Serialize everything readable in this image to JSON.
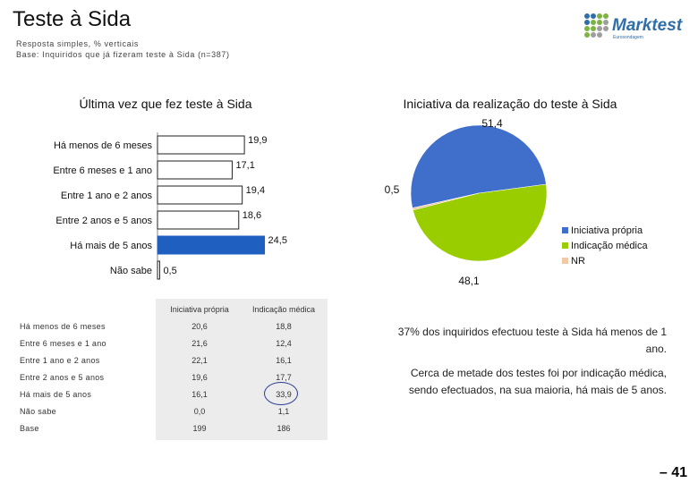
{
  "header": {
    "title": "Teste à Sida",
    "response_type": "Resposta simples, % verticais",
    "base": "Base: Inquiridos que já fizeram teste à Sida (n=387)",
    "logo_text": "Marktest",
    "logo_subtext": "Eurosondagem"
  },
  "colors": {
    "bar_default": "#ffffff",
    "bar_highlight": "#1f5fbf",
    "pie_propria": "#3f6fcb",
    "pie_medica": "#9acd00",
    "pie_nr": "#f0c9a6",
    "logo_dots": [
      "#2f6ea8",
      "#7cb342",
      "#9e9e9e"
    ],
    "circle_mark": "#2b3a8f"
  },
  "chart_data": [
    {
      "type": "bar",
      "orientation": "horizontal",
      "title": "Última vez que fez teste à Sida",
      "categories": [
        "Há menos de 6 meses",
        "Entre 6 meses e 1 ano",
        "Entre 1 ano e 2 anos",
        "Entre 2 anos e 5 anos",
        "Há mais de 5 anos",
        "Não sabe"
      ],
      "values": [
        19.9,
        17.1,
        19.4,
        18.6,
        24.5,
        0.5
      ],
      "value_labels": [
        "19,9",
        "17,1",
        "19,4",
        "18,6",
        "24,5",
        "0,5"
      ],
      "highlight_index": 4,
      "xlim": [
        0,
        30
      ],
      "grid": false
    },
    {
      "type": "pie",
      "title": "Iniciativa da realização do teste à Sida",
      "labels": [
        "Iniciativa própria",
        "Indicação médica",
        "NR"
      ],
      "values": [
        51.4,
        48.1,
        0.5
      ],
      "value_labels": [
        "51,4",
        "48,1",
        "0,5"
      ],
      "legend_position": "right"
    }
  ],
  "table": {
    "col_headers": [
      "Iniciativa própria",
      "Indicação médica"
    ],
    "rows": [
      {
        "label": "Há menos de 6 meses",
        "propria": "20,6",
        "medica": "18,8"
      },
      {
        "label": "Entre 6 meses e 1 ano",
        "propria": "21,6",
        "medica": "12,4"
      },
      {
        "label": "Entre 1 ano e 2 anos",
        "propria": "22,1",
        "medica": "16,1"
      },
      {
        "label": "Entre 2 anos e 5 anos",
        "propria": "19,6",
        "medica": "17,7"
      },
      {
        "label": "Há mais de 5 anos",
        "propria": "16,1",
        "medica": "33,9"
      },
      {
        "label": "Não sabe",
        "propria": "0,0",
        "medica": "1,1"
      },
      {
        "label": "Base",
        "propria": "199",
        "medica": "186"
      }
    ]
  },
  "notes": [
    "37% dos inquiridos efectuou teste à Sida há menos de 1 ano.",
    "Cerca de metade dos testes foi por indicação médica, sendo efectuados, na sua maioria, há mais de 5 anos."
  ],
  "page_number": "– 41"
}
